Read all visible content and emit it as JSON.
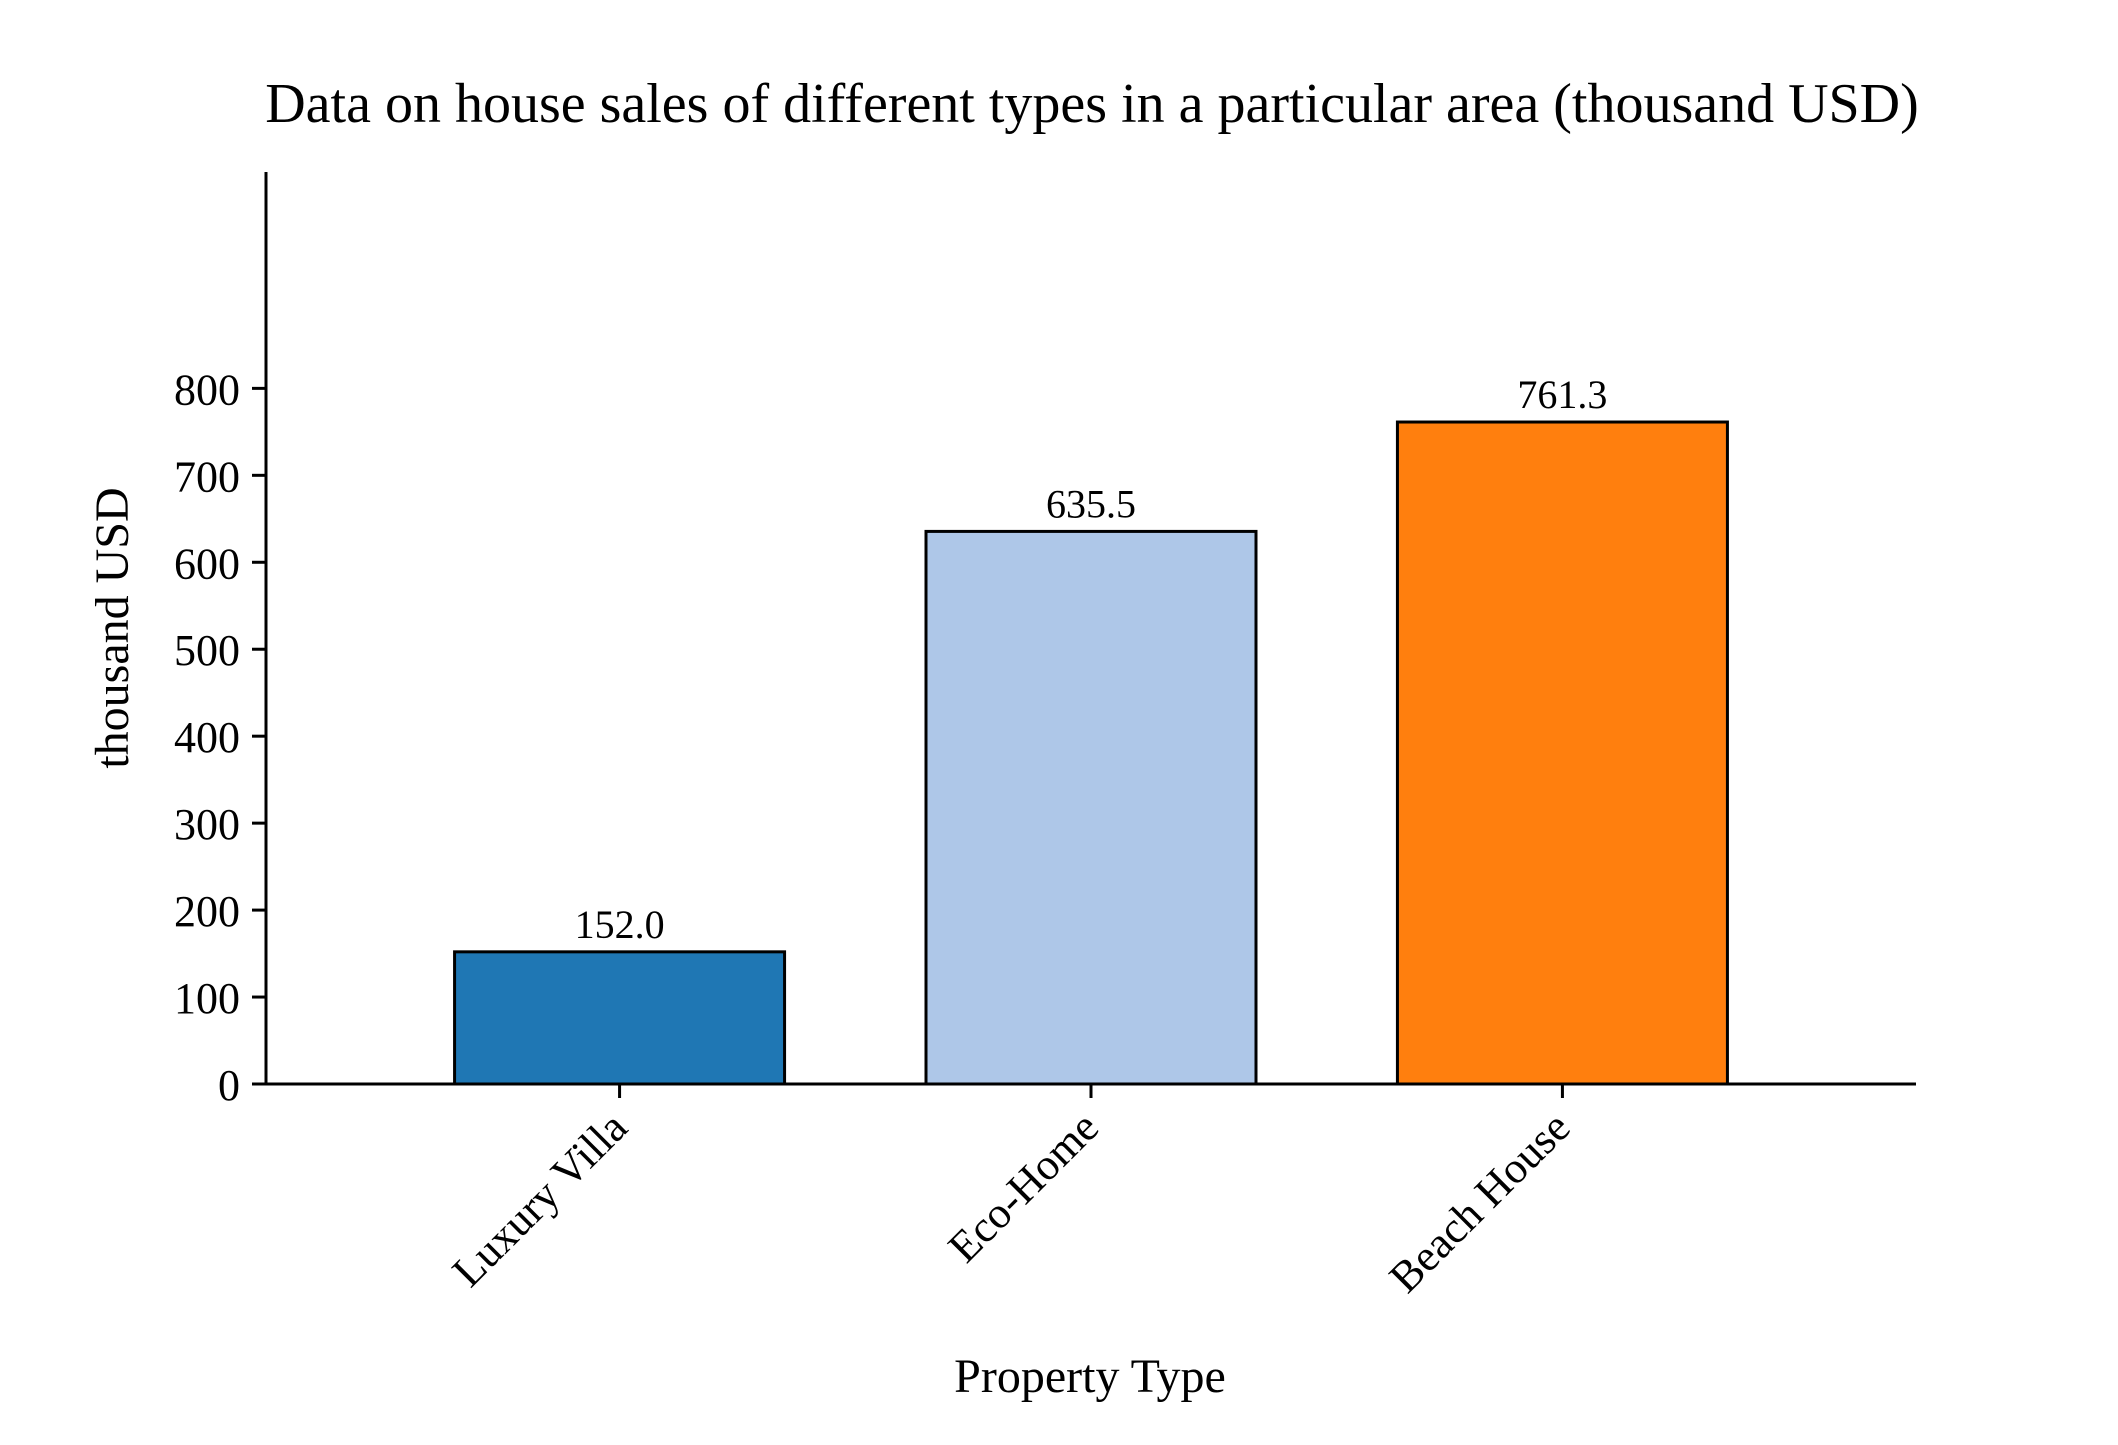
{
  "chart_data": {
    "type": "bar",
    "title": "Data on house sales of different types in a particular area (thousand USD)",
    "xlabel": "Property Type",
    "ylabel": "thousand USD",
    "categories": [
      "Luxury Villa",
      "Eco-Home",
      "Beach House"
    ],
    "values": [
      152.0,
      635.5,
      761.3
    ],
    "data_labels": [
      "152.0",
      "635.5",
      "761.3"
    ],
    "colors": [
      "#1f77b4",
      "#aec7e8",
      "#ff7f0e"
    ],
    "bar_edge_color": "#000000",
    "ylim": [
      0,
      840
    ],
    "yticks": [
      0,
      100,
      200,
      300,
      400,
      500,
      600,
      700,
      800
    ],
    "grid": false,
    "legend": "none"
  }
}
